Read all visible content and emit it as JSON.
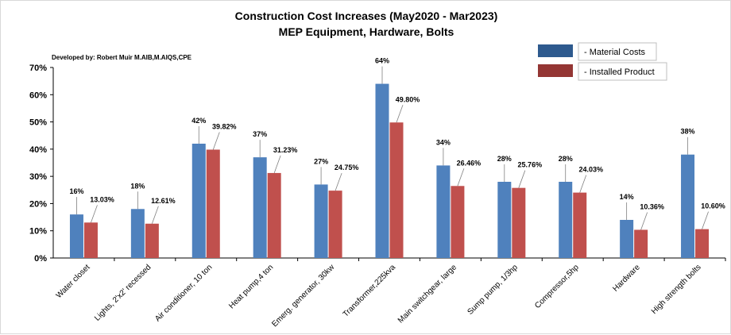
{
  "chart_data": {
    "type": "bar",
    "title": "Construction Cost Increases (May2020 - Mar2023)",
    "subtitle": "MEP Equipment, Hardware, Bolts",
    "credit": "Developed by: Robert Muir M.AIB,M.AIQS,CPE",
    "categories": [
      "Water closet",
      "Lights, 2'x2' recessed",
      "Air conditioner, 10 ton",
      "Heat pump,4 ton",
      "Emerg. generator, 30kw",
      "Transformer,225kva",
      "Main switchgear, large",
      "Sump pump, 1/3hp",
      "Compressor,5hp",
      "Hardware",
      "High strength bolts"
    ],
    "series": [
      {
        "name": "- Material Costs",
        "color": "#4f81bd",
        "values": [
          16,
          18,
          42,
          37,
          27,
          64,
          34,
          28,
          28,
          14,
          38
        ],
        "labels": [
          "16%",
          "18%",
          "42%",
          "37%",
          "27%",
          "64%",
          "34%",
          "28%",
          "28%",
          "14%",
          "38%"
        ]
      },
      {
        "name": "- Installed Product",
        "color": "#c0504d",
        "values": [
          13.03,
          12.61,
          39.82,
          31.23,
          24.75,
          49.8,
          26.46,
          25.76,
          24.03,
          10.36,
          10.6
        ],
        "labels": [
          "13.03%",
          "12.61%",
          "39.82%",
          "31.23%",
          "24.75%",
          "49.80%",
          "26.46%",
          "25.76%",
          "24.03%",
          "10.36%",
          "10.60%"
        ]
      }
    ],
    "ylim": [
      0,
      70
    ],
    "yticks": [
      "0%",
      "10%",
      "20%",
      "30%",
      "40%",
      "50%",
      "60%",
      "70%"
    ],
    "xlabel": "",
    "ylabel": "",
    "grid": false,
    "legend_position": "top-right"
  }
}
